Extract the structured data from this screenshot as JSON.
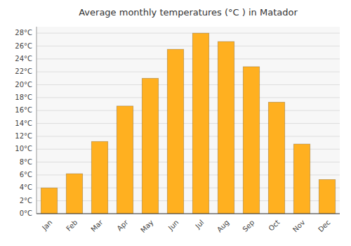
{
  "chart_data": {
    "type": "bar",
    "title": "Average monthly temperatures (°C ) in Matador",
    "categories": [
      "Jan",
      "Feb",
      "Mar",
      "Apr",
      "May",
      "Jun",
      "Jul",
      "Aug",
      "Sep",
      "Oct",
      "Nov",
      "Dec"
    ],
    "values": [
      4.0,
      6.2,
      11.2,
      16.7,
      21.0,
      25.5,
      28.0,
      26.7,
      22.8,
      17.3,
      10.8,
      5.3
    ],
    "color": "#FFB020",
    "ylim": [
      0,
      29
    ],
    "yticks": [
      {
        "value": 0,
        "label": "0°C"
      },
      {
        "value": 2,
        "label": "2°C"
      },
      {
        "value": 4,
        "label": "4°C"
      },
      {
        "value": 6,
        "label": "6°C"
      },
      {
        "value": 8,
        "label": "8°C"
      },
      {
        "value": 10,
        "label": "10°C"
      },
      {
        "value": 12,
        "label": "12°C"
      },
      {
        "value": 14,
        "label": "14°C"
      },
      {
        "value": 16,
        "label": "16°C"
      },
      {
        "value": 18,
        "label": "18°C"
      },
      {
        "value": 20,
        "label": "20°C"
      },
      {
        "value": 22,
        "label": "22°C"
      },
      {
        "value": 24,
        "label": "24°C"
      },
      {
        "value": 26,
        "label": "26°C"
      },
      {
        "value": 28,
        "label": "28°C"
      }
    ],
    "grid": true
  }
}
